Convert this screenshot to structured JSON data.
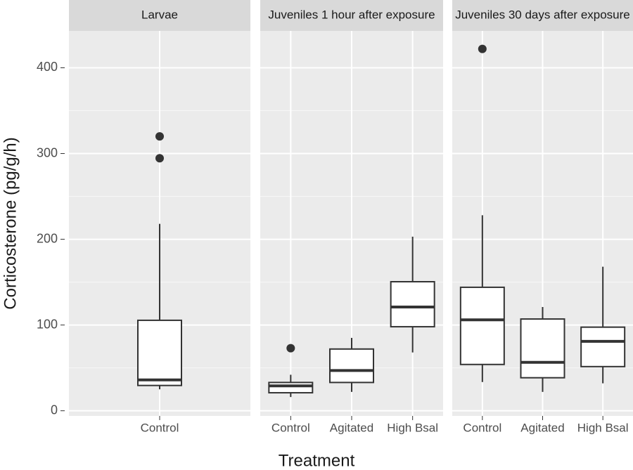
{
  "ylabel": "Corticosterone (pg/g/h)",
  "xlabel": "Treatment",
  "chart_data": [
    {
      "type": "box",
      "title": "Larvae",
      "categories": [
        "Control"
      ],
      "ylim": [
        -6,
        443
      ],
      "yticks": [
        0,
        100,
        200,
        300,
        400
      ],
      "y_minor_ticks": [
        50,
        150,
        250,
        350
      ],
      "grid": true,
      "boxes": [
        {
          "min": 25,
          "q1": 29.5,
          "median": 36,
          "q3": 105.5,
          "max": 218,
          "outliers": [
            320,
            294.5
          ]
        }
      ]
    },
    {
      "type": "box",
      "title": "Juveniles 1 hour after exposure",
      "categories": [
        "Control",
        "Agitated",
        "High Bsal"
      ],
      "boxes": [
        {
          "min": 16,
          "q1": 21,
          "median": 29,
          "q3": 33,
          "max": 42,
          "outliers": [
            73
          ]
        },
        {
          "min": 22,
          "q1": 33,
          "median": 47,
          "q3": 72,
          "max": 85,
          "outliers": []
        },
        {
          "min": 68,
          "q1": 98,
          "median": 121,
          "q3": 150.5,
          "max": 203,
          "outliers": []
        }
      ]
    },
    {
      "type": "box",
      "title": "Juveniles 30 days after exposure",
      "categories": [
        "Control",
        "Agitated",
        "High Bsal"
      ],
      "boxes": [
        {
          "min": 33.5,
          "q1": 54,
          "median": 106,
          "q3": 144,
          "max": 228,
          "outliers": [
            422
          ]
        },
        {
          "min": 22,
          "q1": 38.5,
          "median": 56.5,
          "q3": 107,
          "max": 121,
          "outliers": []
        },
        {
          "min": 32,
          "q1": 51.5,
          "median": 81,
          "q3": 97.5,
          "max": 168,
          "outliers": []
        }
      ]
    }
  ]
}
